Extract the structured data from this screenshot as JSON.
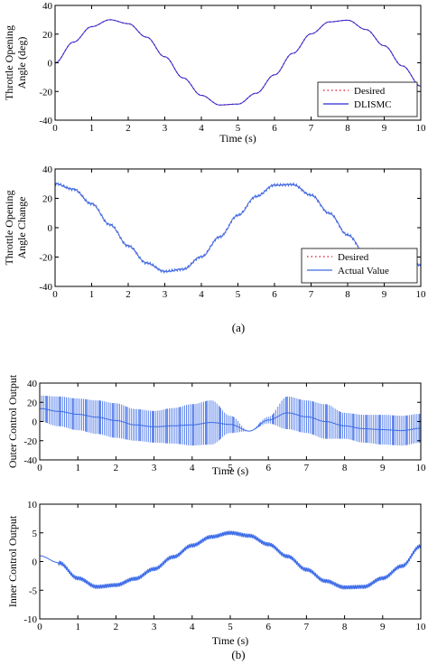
{
  "panel_labels": [
    "(a)",
    "(b)"
  ],
  "chart_data": [
    {
      "type": "line",
      "title": "",
      "xlabel": "Time (s)",
      "ylabel": "Throttle Opening Angle (deg)",
      "ylabel_lines": [
        "Throttle Opening",
        "Angle (deg)"
      ],
      "xlim": [
        0,
        10
      ],
      "ylim": [
        -40,
        40
      ],
      "xticks": [
        "0",
        "1",
        "2",
        "3",
        "4",
        "5",
        "6",
        "7",
        "8",
        "9",
        "10"
      ],
      "yticks": [
        "40",
        "20",
        "0",
        "-20",
        "-40"
      ],
      "grid": false,
      "legend_position": "bottom-right",
      "colors": {
        "desired": "#e8334a",
        "controller": "#2a2ad8"
      },
      "series": [
        {
          "name": "Desired",
          "style": "dotted",
          "color": "#e8334a",
          "x": [
            0,
            0.5,
            1,
            1.5,
            2,
            2.5,
            3,
            3.5,
            4,
            4.5,
            5,
            5.5,
            6,
            6.5,
            7,
            7.5,
            8,
            8.5,
            9,
            9.5,
            10
          ],
          "y": [
            0,
            14.4,
            25.2,
            30.0,
            27.3,
            17.9,
            4.2,
            -10.5,
            -22.7,
            -29.4,
            -28.8,
            -21.2,
            -8.4,
            6.6,
            20.2,
            28.5,
            29.7,
            23.2,
            11.9,
            -2.2,
            -16.3
          ]
        },
        {
          "name": "DLISMC",
          "style": "solid",
          "color": "#2a2ad8",
          "x": [
            0,
            0.5,
            1,
            1.5,
            2,
            2.5,
            3,
            3.5,
            4,
            4.5,
            5,
            5.5,
            6,
            6.5,
            7,
            7.5,
            8,
            8.5,
            9,
            9.5,
            10
          ],
          "y": [
            0,
            14.4,
            25.2,
            30.0,
            27.3,
            17.9,
            4.2,
            -10.5,
            -22.7,
            -29.4,
            -28.8,
            -21.2,
            -8.4,
            6.6,
            20.2,
            28.5,
            29.7,
            23.2,
            11.9,
            -2.2,
            -16.3
          ]
        }
      ]
    },
    {
      "type": "line",
      "title": "",
      "xlabel": "",
      "ylabel": "Throttle Opening Angle Change",
      "ylabel_lines": [
        "Throttle Opening",
        "Angle Change"
      ],
      "xlim": [
        0,
        10
      ],
      "ylim": [
        -40,
        40
      ],
      "xticks": [
        "0",
        "1",
        "2",
        "3",
        "4",
        "5",
        "6",
        "7",
        "8",
        "9",
        "10"
      ],
      "yticks": [
        "40",
        "20",
        "0",
        "-20",
        "-40"
      ],
      "grid": false,
      "legend_position": "bottom-right",
      "series": [
        {
          "name": "Desired",
          "style": "dotted",
          "color": "#e8334a",
          "x": [
            0,
            0.5,
            1,
            1.5,
            2,
            2.5,
            3,
            3.5,
            4,
            4.5,
            5,
            5.5,
            6,
            6.5,
            7,
            7.5,
            8,
            8.5,
            9,
            9.5,
            10
          ],
          "y": [
            30.0,
            26.2,
            16.3,
            2.1,
            -12.4,
            -24.0,
            -29.8,
            -28.3,
            -19.8,
            -6.3,
            8.5,
            21.3,
            29.0,
            29.4,
            22.2,
            9.8,
            -4.9,
            -18.1,
            -27.1,
            -29.9,
            -25.2
          ]
        },
        {
          "name": "Actual Value",
          "style": "solid",
          "color": "#3c6be8",
          "x": [
            0,
            0.5,
            1,
            1.5,
            2,
            2.5,
            3,
            3.5,
            4,
            4.5,
            5,
            5.5,
            6,
            6.5,
            7,
            7.5,
            8,
            8.5,
            9,
            9.5,
            10
          ],
          "y": [
            30.0,
            26.2,
            16.3,
            2.1,
            -12.4,
            -24.0,
            -29.8,
            -28.3,
            -19.8,
            -6.3,
            8.5,
            21.3,
            29.0,
            29.4,
            22.2,
            9.8,
            -4.9,
            -18.1,
            -27.1,
            -29.9,
            -25.2
          ]
        }
      ]
    },
    {
      "type": "line",
      "title": "",
      "xlabel": "Time (s)",
      "ylabel": "Outer Control Output",
      "xlim": [
        0,
        10
      ],
      "ylim": [
        -40,
        40
      ],
      "xticks": [
        "0",
        "1",
        "2",
        "3",
        "4",
        "5",
        "6",
        "7",
        "8",
        "9",
        "10"
      ],
      "yticks": [
        "40",
        "20",
        "0",
        "-20",
        "-40"
      ],
      "grid": false,
      "series": [
        {
          "color": "#3c6be8",
          "x": [
            0,
            0.5,
            1,
            1.5,
            2,
            2.5,
            3,
            3.5,
            4,
            4.5,
            5,
            5.5,
            6,
            6.5,
            7,
            7.5,
            8,
            8.5,
            9,
            9.5,
            10
          ],
          "upper": [
            27,
            26,
            24,
            22,
            19,
            13,
            11,
            14,
            18,
            22,
            6,
            -10,
            5,
            26,
            22,
            18,
            9,
            7,
            7,
            6,
            8
          ],
          "lower": [
            0,
            -5,
            -9,
            -13,
            -17,
            -20,
            -22,
            -23,
            -25,
            -24,
            -12,
            -10,
            -2,
            -8,
            -12,
            -18,
            -18,
            -22,
            -24,
            -25,
            -22
          ]
        }
      ]
    },
    {
      "type": "line",
      "title": "",
      "xlabel": "Time (s)",
      "ylabel": "Inner Control Output",
      "xlim": [
        0,
        10
      ],
      "ylim": [
        -10,
        10
      ],
      "xticks": [
        "0",
        "1",
        "2",
        "3",
        "4",
        "5",
        "6",
        "7",
        "8",
        "9",
        "10"
      ],
      "yticks": [
        "10",
        "5",
        "0",
        "-5",
        "-10"
      ],
      "grid": false,
      "series": [
        {
          "color": "#3c6be8",
          "x": [
            0,
            0.5,
            1,
            1.5,
            2,
            2.5,
            3,
            3.5,
            4,
            4.5,
            5,
            5.5,
            6,
            6.5,
            7,
            7.5,
            8,
            8.5,
            9,
            9.5,
            10
          ],
          "y": [
            1.0,
            -0.2,
            -2.9,
            -4.4,
            -4.1,
            -3.0,
            -1.3,
            0.8,
            2.8,
            4.3,
            5.0,
            4.5,
            3.0,
            0.9,
            -1.4,
            -3.4,
            -4.5,
            -4.4,
            -2.9,
            -0.8,
            2.7
          ]
        }
      ]
    }
  ]
}
